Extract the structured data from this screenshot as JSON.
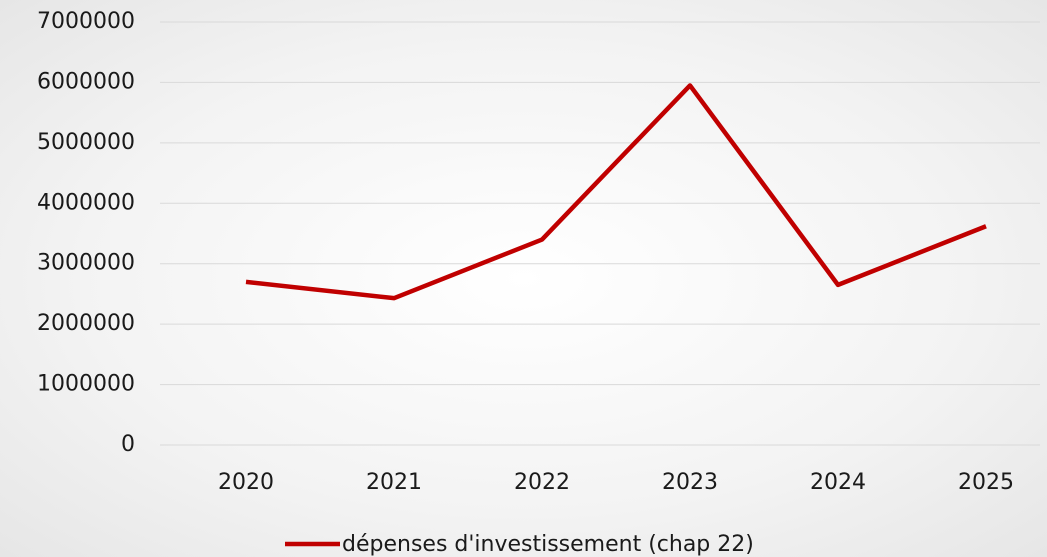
{
  "chart_data": {
    "type": "line",
    "categories": [
      "2020",
      "2021",
      "2022",
      "2023",
      "2024",
      "2025"
    ],
    "series": [
      {
        "name": "dépenses d'investissement (chap 22)",
        "color": "#c00000",
        "values": [
          2700000,
          2430000,
          3400000,
          5950000,
          2650000,
          3620000
        ]
      }
    ],
    "ylim": [
      0,
      7000000
    ],
    "yticks": [
      0,
      1000000,
      2000000,
      3000000,
      4000000,
      5000000,
      6000000,
      7000000
    ],
    "grid": true,
    "legend": "bottom"
  }
}
